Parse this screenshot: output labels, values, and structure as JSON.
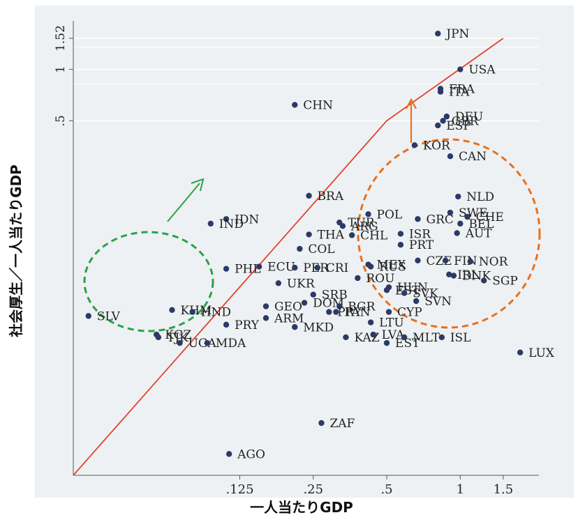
{
  "chart_data": {
    "type": "scatter",
    "title": "",
    "xlabel": "一人当たりGDP",
    "ylabel": "社会厚生／一人当たりGDP",
    "x_scale": "log2",
    "y_scale": "log2",
    "x_ticks": [
      {
        "value": 0.125,
        "label": ".125"
      },
      {
        "value": 0.25,
        "label": ".25"
      },
      {
        "value": 0.5,
        "label": ".5"
      },
      {
        "value": 1,
        "label": "1"
      },
      {
        "value": 1.5,
        "label": "1.5"
      }
    ],
    "y_ticks": [
      {
        "value": 0.5,
        "label": ".5"
      },
      {
        "value": 1,
        "label": "1"
      },
      {
        "value": 1.52,
        "label": "1.52"
      }
    ],
    "xlim": [
      0.026,
      2.1
    ],
    "ylim": [
      0.0042,
      1.75
    ],
    "grid": true,
    "points": [
      {
        "label": "JPN",
        "x": 0.81,
        "y": 1.62
      },
      {
        "label": "USA",
        "x": 1.0,
        "y": 1.0
      },
      {
        "label": "FRA",
        "x": 0.83,
        "y": 0.77
      },
      {
        "label": "ITA",
        "x": 0.83,
        "y": 0.74
      },
      {
        "label": "DEU",
        "x": 0.88,
        "y": 0.53
      },
      {
        "label": "ESP",
        "x": 0.81,
        "y": 0.47
      },
      {
        "label": "GBR",
        "x": 0.85,
        "y": 0.5
      },
      {
        "label": "KOR",
        "x": 0.65,
        "y": 0.36
      },
      {
        "label": "CAN",
        "x": 0.91,
        "y": 0.31
      },
      {
        "label": "CHN",
        "x": 0.21,
        "y": 0.62
      },
      {
        "label": "BRA",
        "x": 0.24,
        "y": 0.182
      },
      {
        "label": "IDN",
        "x": 0.11,
        "y": 0.133
      },
      {
        "label": "IND",
        "x": 0.095,
        "y": 0.125
      },
      {
        "label": "NLD",
        "x": 0.98,
        "y": 0.18
      },
      {
        "label": "SWE",
        "x": 0.91,
        "y": 0.145
      },
      {
        "label": "GRC",
        "x": 0.67,
        "y": 0.133
      },
      {
        "label": "CHE",
        "x": 1.07,
        "y": 0.137
      },
      {
        "label": "BEL",
        "x": 1.0,
        "y": 0.125
      },
      {
        "label": "AUT",
        "x": 0.97,
        "y": 0.11
      },
      {
        "label": "POL",
        "x": 0.42,
        "y": 0.142
      },
      {
        "label": "TUR",
        "x": 0.32,
        "y": 0.127
      },
      {
        "label": "ARG",
        "x": 0.33,
        "y": 0.121
      },
      {
        "label": "CHL",
        "x": 0.36,
        "y": 0.107
      },
      {
        "label": "THA",
        "x": 0.24,
        "y": 0.108
      },
      {
        "label": "ISR",
        "x": 0.57,
        "y": 0.109
      },
      {
        "label": "PRT",
        "x": 0.57,
        "y": 0.094
      },
      {
        "label": "COL",
        "x": 0.22,
        "y": 0.089
      },
      {
        "label": "PHL",
        "x": 0.11,
        "y": 0.068
      },
      {
        "label": "ECU",
        "x": 0.15,
        "y": 0.07
      },
      {
        "label": "PER",
        "x": 0.21,
        "y": 0.069
      },
      {
        "label": "CRI",
        "x": 0.26,
        "y": 0.069
      },
      {
        "label": "MEX",
        "x": 0.42,
        "y": 0.072
      },
      {
        "label": "RUS",
        "x": 0.43,
        "y": 0.07
      },
      {
        "label": "CZE",
        "x": 0.67,
        "y": 0.076
      },
      {
        "label": "FIN",
        "x": 0.87,
        "y": 0.076
      },
      {
        "label": "NOR",
        "x": 1.1,
        "y": 0.075
      },
      {
        "label": "IRL",
        "x": 0.9,
        "y": 0.063
      },
      {
        "label": "DNK",
        "x": 0.94,
        "y": 0.062
      },
      {
        "label": "SGP",
        "x": 1.25,
        "y": 0.058
      },
      {
        "label": "ROU",
        "x": 0.38,
        "y": 0.06
      },
      {
        "label": "UKR",
        "x": 0.18,
        "y": 0.056
      },
      {
        "label": "HUN",
        "x": 0.51,
        "y": 0.053
      },
      {
        "label": "EST",
        "x": 0.5,
        "y": 0.051
      },
      {
        "label": "SVK",
        "x": 0.59,
        "y": 0.049
      },
      {
        "label": "SVN",
        "x": 0.66,
        "y": 0.044
      },
      {
        "label": "SRB",
        "x": 0.25,
        "y": 0.048
      },
      {
        "label": "DOM",
        "x": 0.23,
        "y": 0.043
      },
      {
        "label": "BGR",
        "x": 0.32,
        "y": 0.041
      },
      {
        "label": "PAN",
        "x": 0.31,
        "y": 0.038
      },
      {
        "label": "PRY",
        "x": 0.29,
        "y": 0.038
      },
      {
        "label": "CYP",
        "x": 0.51,
        "y": 0.038
      },
      {
        "label": "GEO",
        "x": 0.16,
        "y": 0.041
      },
      {
        "label": "KHM",
        "x": 0.066,
        "y": 0.039
      },
      {
        "label": "HND",
        "x": 0.08,
        "y": 0.038
      },
      {
        "label": "SLV",
        "x": 0.03,
        "y": 0.036
      },
      {
        "label": "ARM",
        "x": 0.16,
        "y": 0.035
      },
      {
        "label": "PRY",
        "x": 0.11,
        "y": 0.032
      },
      {
        "label": "LTU",
        "x": 0.43,
        "y": 0.033
      },
      {
        "label": "MKD",
        "x": 0.21,
        "y": 0.031
      },
      {
        "label": "KGZ",
        "x": 0.057,
        "y": 0.028
      },
      {
        "label": "TJK",
        "x": 0.058,
        "y": 0.027
      },
      {
        "label": "UGA",
        "x": 0.071,
        "y": 0.025
      },
      {
        "label": "MDA",
        "x": 0.092,
        "y": 0.025
      },
      {
        "label": "KAZ",
        "x": 0.34,
        "y": 0.027
      },
      {
        "label": "LVA",
        "x": 0.44,
        "y": 0.028
      },
      {
        "label": "EST",
        "x": 0.5,
        "y": 0.025
      },
      {
        "label": "MLT",
        "x": 0.59,
        "y": 0.027
      },
      {
        "label": "ISL",
        "x": 0.84,
        "y": 0.027
      },
      {
        "label": "LUX",
        "x": 1.76,
        "y": 0.022
      },
      {
        "label": "ZAF",
        "x": 0.27,
        "y": 0.0085
      },
      {
        "label": "AGO",
        "x": 0.113,
        "y": 0.0056
      }
    ],
    "frontier": [
      {
        "x": 0.026,
        "y": 0.0042
      },
      {
        "x": 0.5,
        "y": 0.5
      },
      {
        "x": 1.5,
        "y": 1.52
      }
    ],
    "colors": {
      "points": "#2b3a67",
      "frontier": "#e2412c",
      "green_circle": "#27a347",
      "orange_circle": "#e8701c",
      "green_arrow": "#27a347",
      "orange_arrow": "#e8701c"
    }
  }
}
